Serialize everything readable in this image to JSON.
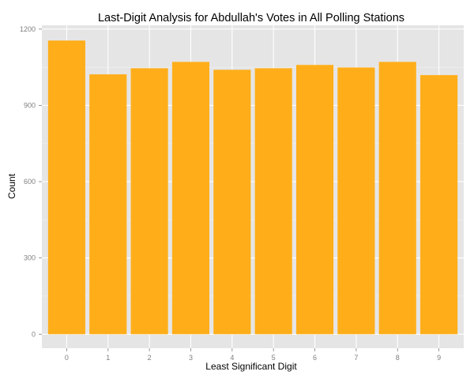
{
  "chart_data": {
    "type": "bar",
    "title": "Last-Digit Analysis for Abdullah's Votes in All Polling Stations",
    "xlabel": "Least Significant Digit",
    "ylabel": "Count",
    "categories": [
      "0",
      "1",
      "2",
      "3",
      "4",
      "5",
      "6",
      "7",
      "8",
      "9"
    ],
    "values": [
      1155,
      1022,
      1046,
      1071,
      1040,
      1046,
      1059,
      1049,
      1071,
      1019
    ],
    "ylim": [
      -55,
      1215
    ],
    "yticks": [
      0,
      300,
      600,
      900,
      1200
    ],
    "ytick_labels": [
      "0",
      "300",
      "600",
      "900",
      "1200"
    ],
    "grid": true,
    "colors": {
      "bar": "#FFAE1A",
      "panel": "#E5E5E5",
      "grid_major": "#FFFFFF",
      "grid_minor": "#F2F2F2"
    }
  }
}
